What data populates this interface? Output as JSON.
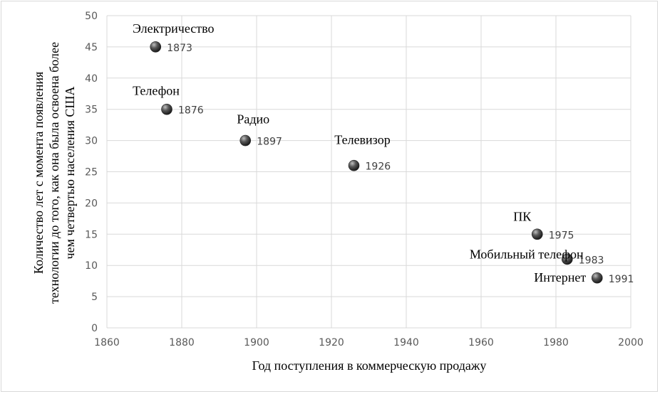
{
  "chart_data": {
    "type": "scatter",
    "xlabel": "Год поступления в коммерческую продажу",
    "ylabel_lines": [
      "Количество лет с момента появления",
      "технологии до того, как она была освоена более",
      "чем четвертью населения США"
    ],
    "xlim": [
      1860,
      2000
    ],
    "ylim": [
      0,
      50
    ],
    "xticks": [
      1860,
      1880,
      1900,
      1920,
      1940,
      1960,
      1980,
      2000
    ],
    "yticks": [
      0,
      5,
      10,
      15,
      20,
      25,
      30,
      35,
      40,
      45,
      50
    ],
    "grid": true,
    "points": [
      {
        "name": "Электричество",
        "x": 1873,
        "y": 45,
        "year_label": "1873"
      },
      {
        "name": "Телефон",
        "x": 1876,
        "y": 35,
        "year_label": "1876"
      },
      {
        "name": "Радио",
        "x": 1897,
        "y": 30,
        "year_label": "1897"
      },
      {
        "name": "Телевизор",
        "x": 1926,
        "y": 26,
        "year_label": "1926"
      },
      {
        "name": "ПК",
        "x": 1975,
        "y": 15,
        "year_label": "1975"
      },
      {
        "name": "Мобильный телефон",
        "x": 1983,
        "y": 11,
        "year_label": "1983"
      },
      {
        "name": "Интернет",
        "x": 1991,
        "y": 8,
        "year_label": "1991"
      }
    ]
  }
}
